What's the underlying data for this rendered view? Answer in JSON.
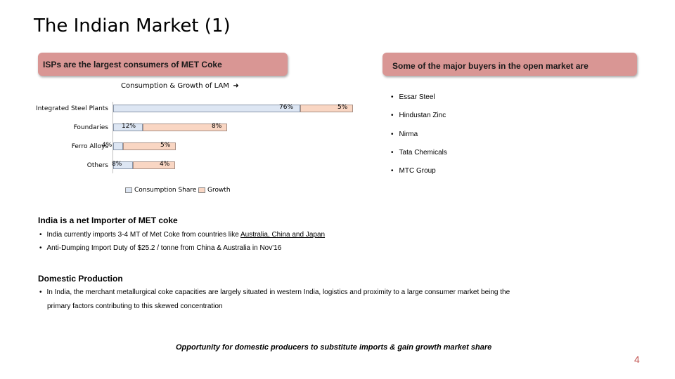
{
  "title": "The Indian Market (1)",
  "left_box": "ISPs are the largest consumers of MET Coke",
  "right_box": "Some of the major buyers in the open market are",
  "chart_data": {
    "type": "bar",
    "title": "Consumption & Growth of LAM",
    "categories": [
      "Integrated Steel Plants",
      "Foundaries",
      "Ferro Alloys",
      "Others"
    ],
    "series": [
      {
        "name": "Consumption Share",
        "values": [
          76,
          12,
          4,
          8
        ],
        "labels": [
          "76%",
          "12%",
          "4%",
          "8%"
        ],
        "color": "#dde6f3"
      },
      {
        "name": "Growth",
        "values": [
          5,
          8,
          5,
          4
        ],
        "labels": [
          "5%",
          "8%",
          "5%",
          "4%"
        ],
        "color": "#f9d6c3"
      }
    ],
    "legend": "bottom"
  },
  "buyers": [
    "Essar Steel",
    "Hindustan Zinc",
    "Nirma",
    "Tata Chemicals",
    "MTC Group"
  ],
  "net_importer": {
    "heading": "India is a net Importer of MET coke",
    "bullet1_prefix": "India currently imports 3-4 MT of Met Coke from countries like ",
    "bullet1_link": "Australia, China and Japan",
    "bullet2": "Anti-Dumping Import Duty of $25.2 / tonne from China & Australia in Nov'16"
  },
  "domestic": {
    "heading": "Domestic Production",
    "line1": "In India, the merchant metallurgical coke capacities are largely situated in western India, logistics and proximity to a large consumer market being the",
    "line2": "primary factors contributing to this skewed concentration"
  },
  "tagline": "Opportunity for domestic producers to substitute imports & gain growth market share",
  "page_number": "4",
  "colors": {
    "box": "#d99694",
    "page_number": "#c0504d"
  }
}
